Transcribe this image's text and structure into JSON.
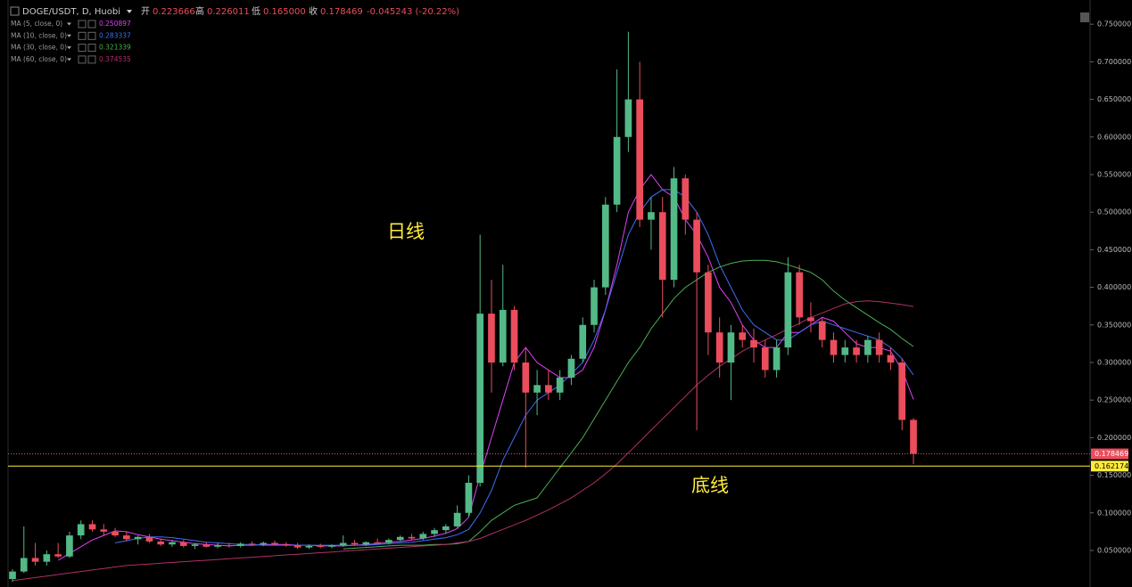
{
  "chart_data": {
    "type": "candlestick",
    "header": {
      "symbol": "DOGE/USDT, D, Huobi",
      "open_label": "开",
      "open": "0.223666",
      "high_label": "高",
      "high": "0.226011",
      "low_label": "低",
      "low": "0.165000",
      "close_label": "收",
      "close": "0.178469",
      "change": "-0.045243 (-20.22%)"
    },
    "up_color": "#53b987",
    "down_color": "#eb4d5c",
    "open": [
      0.012,
      0.022,
      0.04,
      0.035,
      0.045,
      0.042,
      0.07,
      0.085,
      0.078,
      0.075,
      0.07,
      0.065,
      0.068,
      0.062,
      0.058,
      0.061,
      0.056,
      0.058,
      0.055,
      0.057,
      0.056,
      0.059,
      0.058,
      0.06,
      0.058,
      0.057,
      0.054,
      0.056,
      0.055,
      0.057,
      0.06,
      0.058,
      0.061,
      0.06,
      0.064,
      0.068,
      0.066,
      0.072,
      0.077,
      0.082,
      0.1,
      0.14,
      0.365,
      0.3,
      0.37,
      0.3,
      0.26,
      0.27,
      0.26,
      0.28,
      0.305,
      0.35,
      0.4,
      0.51,
      0.6,
      0.65,
      0.49,
      0.5,
      0.41,
      0.545,
      0.49,
      0.42,
      0.34,
      0.3,
      0.34,
      0.33,
      0.32,
      0.29,
      0.32,
      0.42,
      0.36,
      0.355,
      0.33,
      0.31,
      0.32,
      0.31,
      0.33,
      0.31,
      0.3,
      0.223666
    ],
    "high": [
      0.025,
      0.082,
      0.06,
      0.05,
      0.06,
      0.075,
      0.09,
      0.09,
      0.085,
      0.08,
      0.075,
      0.07,
      0.072,
      0.066,
      0.064,
      0.064,
      0.06,
      0.061,
      0.06,
      0.06,
      0.061,
      0.062,
      0.062,
      0.063,
      0.061,
      0.06,
      0.058,
      0.059,
      0.058,
      0.07,
      0.064,
      0.062,
      0.066,
      0.066,
      0.07,
      0.072,
      0.075,
      0.08,
      0.085,
      0.11,
      0.15,
      0.47,
      0.41,
      0.43,
      0.375,
      0.32,
      0.29,
      0.29,
      0.29,
      0.31,
      0.36,
      0.41,
      0.52,
      0.69,
      0.74,
      0.7,
      0.52,
      0.52,
      0.56,
      0.55,
      0.5,
      0.43,
      0.36,
      0.35,
      0.35,
      0.345,
      0.33,
      0.33,
      0.44,
      0.43,
      0.38,
      0.36,
      0.34,
      0.33,
      0.33,
      0.335,
      0.34,
      0.32,
      0.305,
      0.226011
    ],
    "low": [
      0.008,
      0.02,
      0.03,
      0.03,
      0.04,
      0.04,
      0.065,
      0.075,
      0.07,
      0.068,
      0.062,
      0.058,
      0.06,
      0.056,
      0.055,
      0.054,
      0.052,
      0.054,
      0.053,
      0.054,
      0.054,
      0.056,
      0.056,
      0.057,
      0.055,
      0.052,
      0.052,
      0.053,
      0.053,
      0.055,
      0.056,
      0.056,
      0.058,
      0.058,
      0.062,
      0.063,
      0.064,
      0.068,
      0.072,
      0.08,
      0.095,
      0.135,
      0.26,
      0.295,
      0.29,
      0.16,
      0.23,
      0.25,
      0.25,
      0.27,
      0.3,
      0.34,
      0.39,
      0.5,
      0.58,
      0.48,
      0.45,
      0.36,
      0.4,
      0.47,
      0.21,
      0.31,
      0.28,
      0.25,
      0.32,
      0.3,
      0.28,
      0.28,
      0.31,
      0.35,
      0.34,
      0.32,
      0.3,
      0.3,
      0.3,
      0.3,
      0.3,
      0.29,
      0.21,
      0.165
    ],
    "close": [
      0.022,
      0.04,
      0.035,
      0.045,
      0.042,
      0.07,
      0.085,
      0.078,
      0.075,
      0.07,
      0.065,
      0.068,
      0.062,
      0.058,
      0.061,
      0.056,
      0.058,
      0.055,
      0.057,
      0.056,
      0.059,
      0.058,
      0.06,
      0.058,
      0.057,
      0.054,
      0.056,
      0.055,
      0.057,
      0.06,
      0.058,
      0.061,
      0.06,
      0.064,
      0.068,
      0.066,
      0.072,
      0.077,
      0.082,
      0.1,
      0.14,
      0.365,
      0.3,
      0.37,
      0.3,
      0.26,
      0.27,
      0.26,
      0.28,
      0.305,
      0.35,
      0.4,
      0.51,
      0.6,
      0.65,
      0.49,
      0.5,
      0.41,
      0.545,
      0.49,
      0.42,
      0.34,
      0.3,
      0.34,
      0.33,
      0.32,
      0.29,
      0.32,
      0.42,
      0.36,
      0.355,
      0.33,
      0.31,
      0.32,
      0.31,
      0.33,
      0.31,
      0.3,
      0.223666,
      0.178469
    ],
    "series": [
      {
        "name": "MA (5, close, 0)",
        "color": "#e040fb",
        "values": [
          null,
          null,
          null,
          null,
          0.037,
          0.046,
          0.055,
          0.064,
          0.07,
          0.076,
          0.075,
          0.071,
          0.068,
          0.065,
          0.063,
          0.061,
          0.059,
          0.058,
          0.057,
          0.056,
          0.057,
          0.057,
          0.058,
          0.058,
          0.058,
          0.057,
          0.057,
          0.056,
          0.056,
          0.056,
          0.057,
          0.058,
          0.059,
          0.061,
          0.062,
          0.064,
          0.066,
          0.069,
          0.073,
          0.079,
          0.094,
          0.15,
          0.2,
          0.25,
          0.3,
          0.32,
          0.3,
          0.29,
          0.28,
          0.28,
          0.29,
          0.32,
          0.37,
          0.43,
          0.5,
          0.53,
          0.55,
          0.53,
          0.52,
          0.49,
          0.47,
          0.44,
          0.4,
          0.38,
          0.35,
          0.33,
          0.32,
          0.32,
          0.34,
          0.34,
          0.35,
          0.36,
          0.355,
          0.34,
          0.325,
          0.32,
          0.32,
          0.315,
          0.29,
          0.250897
        ]
      },
      {
        "name": "MA (10, close, 0)",
        "color": "#3f6ef5",
        "values": [
          null,
          null,
          null,
          null,
          null,
          null,
          null,
          null,
          null,
          0.06,
          0.063,
          0.066,
          0.068,
          0.068,
          0.067,
          0.065,
          0.063,
          0.061,
          0.06,
          0.059,
          0.058,
          0.058,
          0.057,
          0.057,
          0.057,
          0.057,
          0.057,
          0.057,
          0.057,
          0.057,
          0.057,
          0.057,
          0.058,
          0.059,
          0.06,
          0.061,
          0.063,
          0.065,
          0.067,
          0.071,
          0.078,
          0.1,
          0.13,
          0.17,
          0.2,
          0.23,
          0.25,
          0.26,
          0.27,
          0.285,
          0.3,
          0.33,
          0.37,
          0.42,
          0.47,
          0.5,
          0.52,
          0.53,
          0.53,
          0.52,
          0.5,
          0.47,
          0.43,
          0.4,
          0.37,
          0.35,
          0.34,
          0.33,
          0.33,
          0.34,
          0.35,
          0.355,
          0.35,
          0.345,
          0.34,
          0.335,
          0.33,
          0.32,
          0.305,
          0.283337
        ]
      },
      {
        "name": "MA (30, close, 0)",
        "color": "#4caf50",
        "values": [
          null,
          null,
          null,
          null,
          null,
          null,
          null,
          null,
          null,
          null,
          null,
          null,
          null,
          null,
          null,
          null,
          null,
          null,
          null,
          null,
          null,
          null,
          null,
          null,
          null,
          null,
          null,
          null,
          null,
          0.052,
          0.053,
          0.054,
          0.055,
          0.056,
          0.057,
          0.057,
          0.057,
          0.058,
          0.058,
          0.059,
          0.062,
          0.075,
          0.09,
          0.1,
          0.11,
          0.115,
          0.12,
          0.14,
          0.16,
          0.18,
          0.2,
          0.225,
          0.25,
          0.275,
          0.3,
          0.32,
          0.345,
          0.365,
          0.385,
          0.4,
          0.41,
          0.42,
          0.427,
          0.432,
          0.435,
          0.436,
          0.436,
          0.434,
          0.43,
          0.425,
          0.42,
          0.41,
          0.395,
          0.383,
          0.373,
          0.363,
          0.353,
          0.344,
          0.332,
          0.321339
        ]
      },
      {
        "name": "MA (60, close, 0)",
        "color": "#b0306a",
        "values": [
          0.01,
          0.012,
          0.014,
          0.016,
          0.018,
          0.02,
          0.022,
          0.024,
          0.026,
          0.028,
          0.03,
          0.031,
          0.032,
          0.033,
          0.034,
          0.035,
          0.036,
          0.037,
          0.038,
          0.039,
          0.04,
          0.041,
          0.042,
          0.043,
          0.044,
          0.045,
          0.046,
          0.047,
          0.048,
          0.049,
          0.05,
          0.051,
          0.052,
          0.053,
          0.054,
          0.055,
          0.056,
          0.057,
          0.058,
          0.06,
          0.062,
          0.066,
          0.072,
          0.078,
          0.084,
          0.09,
          0.097,
          0.104,
          0.112,
          0.12,
          0.13,
          0.14,
          0.152,
          0.165,
          0.18,
          0.195,
          0.21,
          0.225,
          0.24,
          0.255,
          0.27,
          0.283,
          0.295,
          0.305,
          0.315,
          0.323,
          0.33,
          0.337,
          0.345,
          0.352,
          0.36,
          0.366,
          0.372,
          0.378,
          0.381,
          0.382,
          0.381,
          0.379,
          0.377,
          0.374535
        ]
      }
    ],
    "support_line": 0.162174,
    "support_color": "#ffeb3b",
    "annotations": [
      "日线",
      "底线"
    ],
    "ylim": [
      0.0014,
      0.7822
    ],
    "yticks": [
      {
        "value": 0.05,
        "label": "0.050000"
      },
      {
        "value": 0.1,
        "label": "0.100000"
      },
      {
        "value": 0.15,
        "label": "0.150000"
      },
      {
        "value": 0.2,
        "label": "0.200000"
      },
      {
        "value": 0.25,
        "label": "0.250000"
      },
      {
        "value": 0.3,
        "label": "0.300000"
      },
      {
        "value": 0.35,
        "label": "0.350000"
      },
      {
        "value": 0.4,
        "label": "0.400000"
      },
      {
        "value": 0.45,
        "label": "0.450000"
      },
      {
        "value": 0.5,
        "label": "0.500000"
      },
      {
        "value": 0.55,
        "label": "0.550000"
      },
      {
        "value": 0.6,
        "label": "0.600000"
      },
      {
        "value": 0.65,
        "label": "0.650000"
      },
      {
        "value": 0.7,
        "label": "0.700000"
      },
      {
        "value": 0.75,
        "label": "0.750000"
      }
    ]
  }
}
